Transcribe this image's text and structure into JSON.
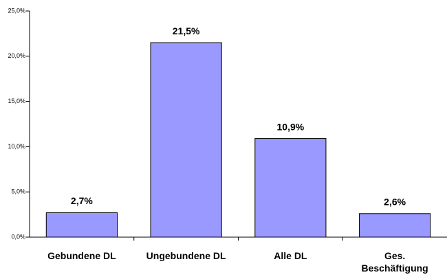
{
  "chart_data": {
    "type": "bar",
    "categories": [
      "Gebundene DL",
      "Ungebundene DL",
      "Alle DL",
      "Ges. Beschäftigung"
    ],
    "values": [
      2.7,
      21.5,
      10.9,
      2.6
    ],
    "value_labels": [
      "2,7%",
      "21,5%",
      "10,9%",
      "2,6%"
    ],
    "color": "#9999ff",
    "ylim": [
      0,
      25
    ],
    "yticks": [
      {
        "value": 0,
        "label": "0,0%"
      },
      {
        "value": 5,
        "label": "5,0%"
      },
      {
        "value": 10,
        "label": "10,0%"
      },
      {
        "value": 15,
        "label": "15,0%"
      },
      {
        "value": 20,
        "label": "20,0%"
      },
      {
        "value": 25,
        "label": "25,0%"
      }
    ],
    "grid": false
  }
}
